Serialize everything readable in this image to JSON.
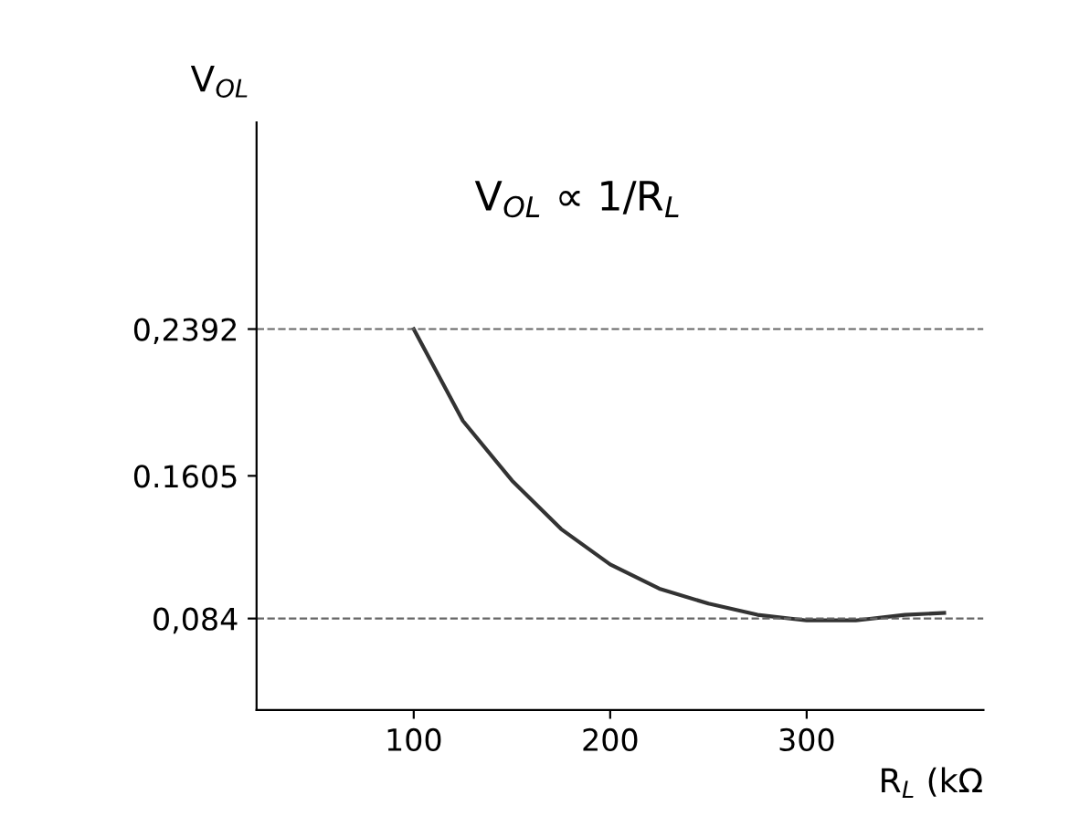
{
  "chart_data": {
    "type": "line",
    "xlabel": "R$_{L}$ (kΩ",
    "ylabel": "V$_{OL}$",
    "annotations": [
      "V$_{OL}$ ∝ 1/R$_{L}$"
    ],
    "x": [
      100,
      125,
      150,
      175,
      200,
      225,
      250,
      275,
      300,
      325,
      350,
      370
    ],
    "series": [
      {
        "color": "#333333",
        "values": [
          0.2392,
          0.19,
          0.158,
          0.132,
          0.113,
          0.1,
          0.092,
          0.086,
          0.083,
          0.083,
          0.086,
          0.087
        ]
      }
    ],
    "xlim": [
      20,
      390
    ],
    "ylim": [
      0.035,
      0.35
    ],
    "xticks": [
      100,
      200,
      300
    ],
    "yticks": [
      {
        "value": 0.084,
        "label": "0,084"
      },
      {
        "value": 0.1605,
        "label": "0.1605"
      },
      {
        "value": 0.2392,
        "label": "0,2392"
      }
    ],
    "ref_lines": [
      {
        "axis": "y",
        "value": 0.2392,
        "label": null,
        "color": "#666666",
        "line_style": "dashed"
      },
      {
        "axis": "y",
        "value": 0.084,
        "label": null,
        "color": "#666666",
        "line_style": "dashed"
      }
    ],
    "grid": false,
    "legend": false,
    "marker": "none",
    "line_style": "solid"
  }
}
